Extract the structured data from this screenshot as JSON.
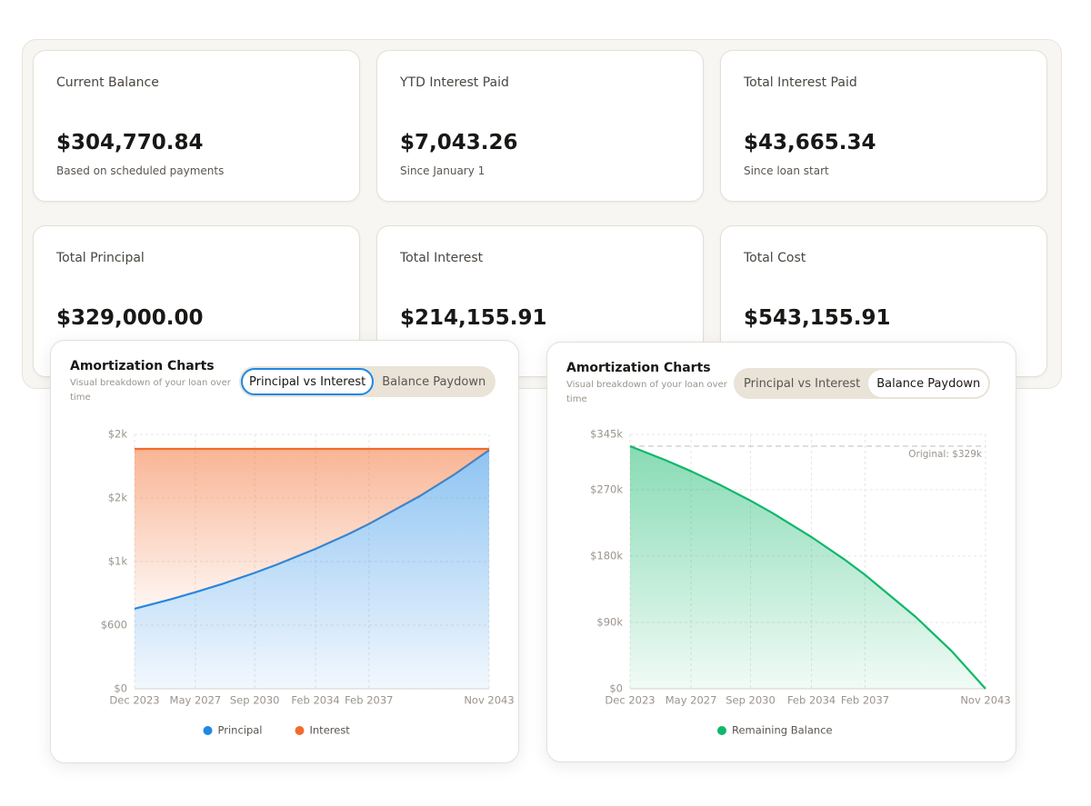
{
  "cards": [
    {
      "label": "Current Balance",
      "value": "$304,770.84",
      "note": "Based on scheduled payments"
    },
    {
      "label": "YTD Interest Paid",
      "value": "$7,043.26",
      "note": "Since January 1"
    },
    {
      "label": "Total Interest Paid",
      "value": "$43,665.34",
      "note": "Since loan start"
    },
    {
      "label": "Total Principal",
      "value": "$329,000.00"
    },
    {
      "label": "Total Interest",
      "value": "$214,155.91"
    },
    {
      "label": "Total Cost",
      "value": "$543,155.91"
    }
  ],
  "chart_data": [
    {
      "type": "area",
      "stacked": true,
      "title": "Amortization Charts",
      "subtitle": "Visual breakdown of your loan over time",
      "toggle": [
        "Principal vs Interest",
        "Balance Paydown"
      ],
      "active": 0,
      "x": [
        "Dec 2023",
        "Dec 2025",
        "May 2027",
        "Dec 2028",
        "Sep 2030",
        "Dec 2031",
        "Feb 2034",
        "Dec 2035",
        "Feb 2037",
        "Dec 2039",
        "Dec 2041",
        "Nov 2043"
      ],
      "xticks": [
        "Dec 2023",
        "May 2027",
        "Sep 2030",
        "Feb 2034",
        "Feb 2037",
        "Nov 2043"
      ],
      "ylim": [
        0,
        2400
      ],
      "yticks": [
        {
          "value": 0,
          "label": "$0"
        },
        {
          "value": 600,
          "label": "$600"
        },
        {
          "value": 1200,
          "label": "$1k"
        },
        {
          "value": 1800,
          "label": "$2k"
        },
        {
          "value": 2400,
          "label": "$2k"
        }
      ],
      "grid": true,
      "legend": "bottom",
      "series": [
        {
          "name": "Principal",
          "color": "#1e88e5",
          "values": [
            755,
            843,
            911,
            993,
            1094,
            1172,
            1320,
            1458,
            1555,
            1816,
            2026,
            2252
          ]
        },
        {
          "name": "Interest",
          "color": "#f26b2b",
          "values": [
            1508,
            1420,
            1352,
            1270,
            1169,
            1091,
            943,
            805,
            708,
            447,
            237,
            11
          ]
        }
      ]
    },
    {
      "type": "area",
      "stacked": false,
      "title": "Amortization Charts",
      "subtitle": "Visual breakdown of your loan over time",
      "toggle": [
        "Principal vs Interest",
        "Balance Paydown"
      ],
      "active": 1,
      "x": [
        "Dec 2023",
        "Dec 2025",
        "May 2027",
        "Dec 2028",
        "Sep 2030",
        "Dec 2031",
        "Feb 2034",
        "Dec 2035",
        "Feb 2037",
        "Dec 2039",
        "Dec 2041",
        "Nov 2043"
      ],
      "xticks": [
        "Dec 2023",
        "May 2027",
        "Sep 2030",
        "Feb 2034",
        "Feb 2037",
        "Nov 2043"
      ],
      "ylim": [
        0,
        345000
      ],
      "yticks": [
        {
          "value": 0,
          "label": "$0"
        },
        {
          "value": 90000,
          "label": "$90k"
        },
        {
          "value": 180000,
          "label": "$180k"
        },
        {
          "value": 270000,
          "label": "$270k"
        },
        {
          "value": 345000,
          "label": "$345k"
        }
      ],
      "grid": true,
      "legend": "bottom",
      "reference": {
        "value": 329000,
        "label": "Original: $329k"
      },
      "series": [
        {
          "name": "Remaining Balance",
          "color": "#10b76a",
          "values": [
            329000,
            309884,
            295024,
            276995,
            255095,
            238090,
            205744,
            175540,
            154500,
            97520,
            51570,
            0
          ]
        }
      ]
    }
  ]
}
